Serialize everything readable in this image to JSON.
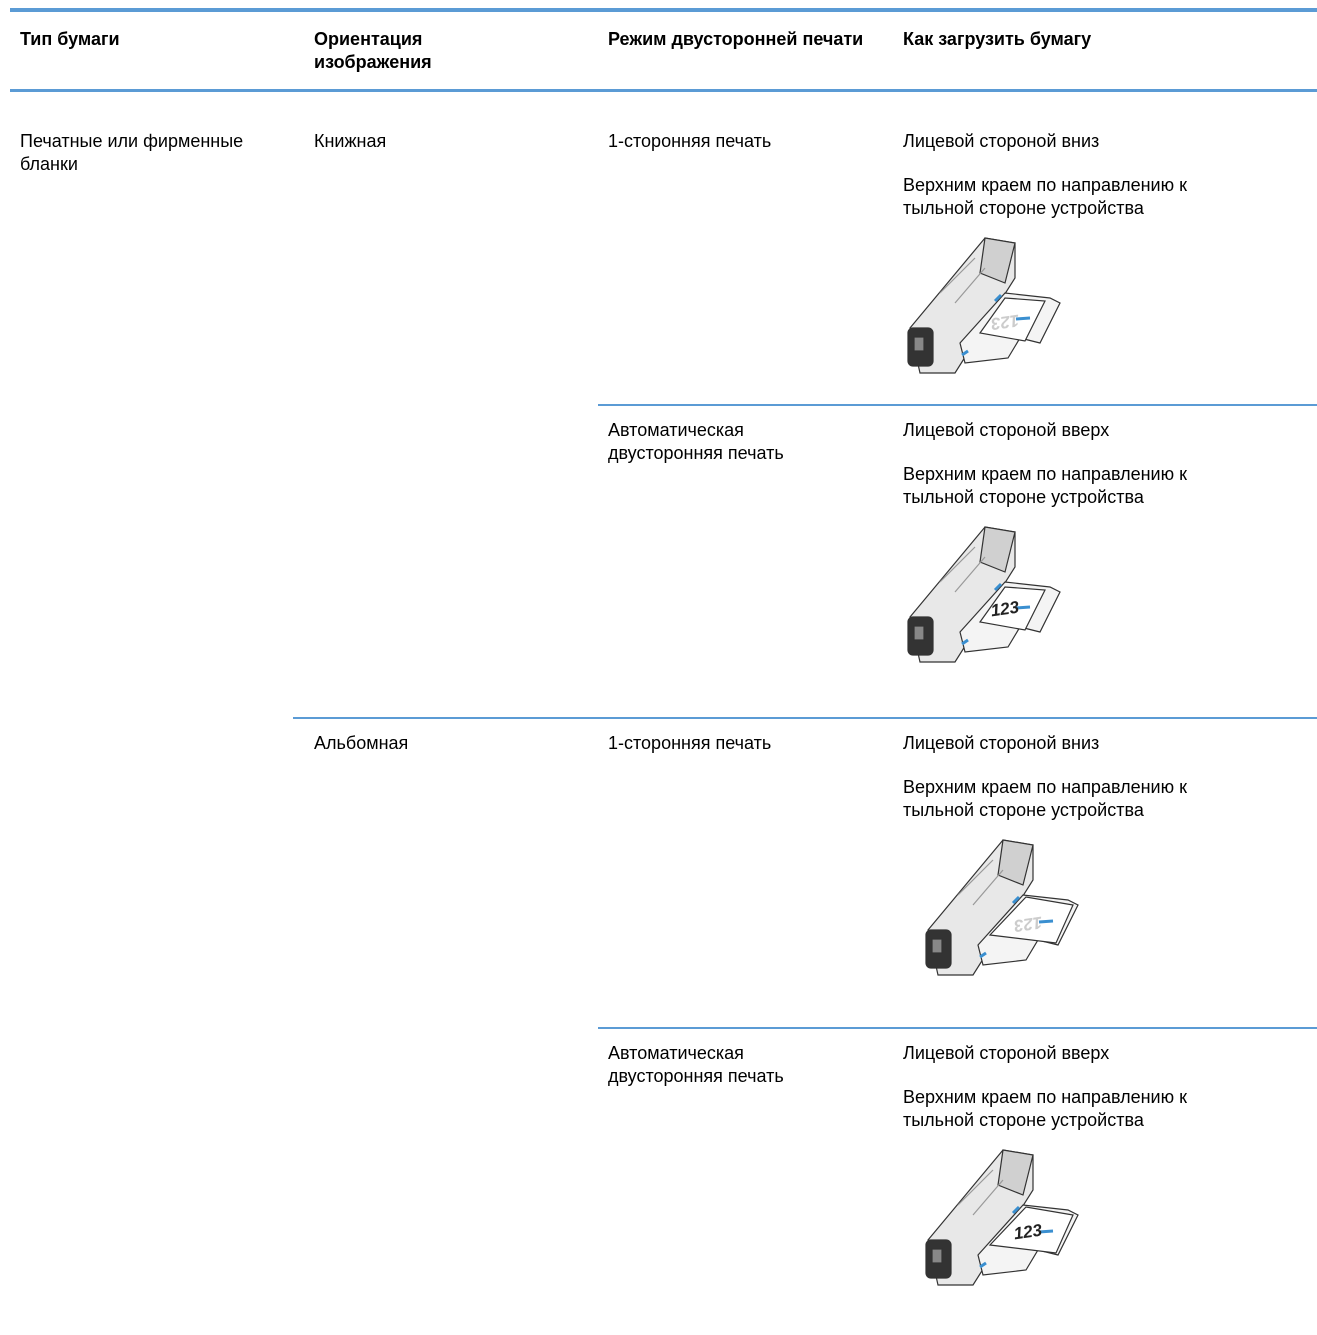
{
  "table": {
    "headers": [
      "Тип бумаги",
      "Ориентация изображения",
      "Режим двусторонней печати",
      "Как загрузить бумагу"
    ],
    "rows": [
      {
        "paper_type": "Печатные или фирменные бланки",
        "orientation": "Книжная",
        "duplex_mode": "1-сторонняя печать",
        "load": [
          "Лицевой стороной вниз",
          "Верхним краем по направлению к тыльной стороне устройства"
        ],
        "illustration_text": "123"
      },
      {
        "duplex_mode": "Автоматическая двусторонняя печать",
        "load": [
          "Лицевой стороной вверх",
          "Верхним краем по направлению к тыльной стороне устройства"
        ],
        "illustration_text": "123"
      },
      {
        "orientation": "Альбомная",
        "duplex_mode": "1-сторонняя печать",
        "load": [
          "Лицевой стороной вниз",
          "Верхним краем по направлению к тыльной стороне устройства"
        ],
        "illustration_text": "123"
      },
      {
        "duplex_mode": "Автоматическая двусторонняя печать",
        "load": [
          "Лицевой стороной вверх",
          "Верхним краем по направлению к тыльной стороне устройства"
        ],
        "illustration_text": "123"
      }
    ]
  }
}
